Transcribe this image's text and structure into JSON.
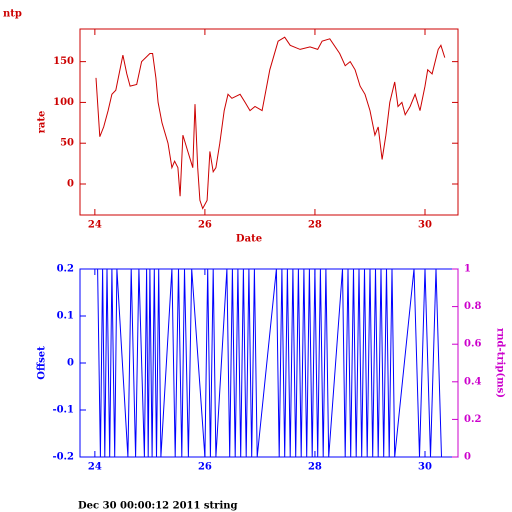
{
  "chart_data": [
    {
      "type": "line",
      "title": "ntp",
      "x_label": "Date",
      "y_label": "rate",
      "xlim": [
        23.73,
        30.6
      ],
      "xticks": [
        24,
        26,
        28,
        30
      ],
      "ylim": [
        -38,
        190
      ],
      "yticks": [
        0,
        50,
        100,
        150
      ],
      "color": "#cc0000",
      "series": [
        {
          "color": "#cc0000",
          "x": [
            24.02,
            24.09,
            24.16,
            24.24,
            24.31,
            24.38,
            24.51,
            24.58,
            24.64,
            24.76,
            24.85,
            25.0,
            25.05,
            25.11,
            25.15,
            25.22,
            25.33,
            25.4,
            25.45,
            25.51,
            25.55,
            25.6,
            25.69,
            25.78,
            25.82,
            25.87,
            25.91,
            25.96,
            26.04,
            26.09,
            26.15,
            26.2,
            26.27,
            26.35,
            26.42,
            26.49,
            26.64,
            26.73,
            26.82,
            26.91,
            27.04,
            27.18,
            27.33,
            27.45,
            27.55,
            27.73,
            27.91,
            28.05,
            28.13,
            28.27,
            28.45,
            28.55,
            28.64,
            28.73,
            28.82,
            28.91,
            29.0,
            29.09,
            29.15,
            29.22,
            29.29,
            29.36,
            29.45,
            29.51,
            29.58,
            29.64,
            29.73,
            29.82,
            29.91,
            30.0,
            30.05,
            30.13,
            30.24,
            30.29,
            30.36
          ],
          "values": [
            130,
            58,
            70,
            90,
            110,
            115,
            158,
            135,
            120,
            122,
            150,
            160,
            160,
            130,
            100,
            75,
            50,
            20,
            28,
            20,
            -15,
            60,
            40,
            20,
            98,
            20,
            -20,
            -30,
            -20,
            40,
            15,
            20,
            50,
            90,
            110,
            105,
            110,
            100,
            90,
            95,
            90,
            140,
            175,
            180,
            170,
            165,
            168,
            165,
            175,
            178,
            160,
            145,
            150,
            140,
            120,
            110,
            90,
            60,
            70,
            30,
            60,
            100,
            125,
            95,
            100,
            85,
            95,
            110,
            90,
            120,
            140,
            135,
            165,
            170,
            155
          ]
        }
      ]
    },
    {
      "type": "line",
      "y_label": "Offset",
      "y2_label": "rnd-trip(ms)",
      "xlim": [
        23.73,
        30.6
      ],
      "xticks": [
        24,
        26,
        28,
        30
      ],
      "ylim": [
        -0.2,
        0.2
      ],
      "yticks": [
        -0.2,
        -0.1,
        0,
        0.1,
        0.2
      ],
      "y2lim": [
        0,
        1
      ],
      "y2ticks": [
        0,
        0.2,
        0.4,
        0.6,
        0.8,
        1
      ],
      "color": "#0000ff",
      "y2color": "#cc00cc",
      "series": [
        {
          "color": "#0000ff",
          "x": [
            24.05,
            24.1,
            24.14,
            24.18,
            24.22,
            24.27,
            24.31,
            24.36,
            24.4,
            24.6,
            24.66,
            24.74,
            24.8,
            24.9,
            24.94,
            24.97,
            25.0,
            25.04,
            25.08,
            25.12,
            25.16,
            25.2,
            25.4,
            25.46,
            25.52,
            25.58,
            25.63,
            25.7,
            25.76,
            26.0,
            26.05,
            26.1,
            26.15,
            26.2,
            26.4,
            26.45,
            26.5,
            26.55,
            26.6,
            26.65,
            26.7,
            26.75,
            26.8,
            26.85,
            26.9,
            26.95,
            27.3,
            27.35,
            27.4,
            27.45,
            27.5,
            27.55,
            27.6,
            27.65,
            27.7,
            27.75,
            27.8,
            27.85,
            27.9,
            27.95,
            28.0,
            28.05,
            28.1,
            28.15,
            28.2,
            28.25,
            28.5,
            28.55,
            28.6,
            28.65,
            28.7,
            28.75,
            28.8,
            28.85,
            28.9,
            28.95,
            29.0,
            29.05,
            29.1,
            29.15,
            29.2,
            29.25,
            29.3,
            29.35,
            29.4,
            29.45,
            29.8,
            29.9,
            30.0,
            30.1,
            30.2,
            30.3
          ],
          "values": [
            0.2,
            -0.2,
            0.2,
            -0.2,
            0.2,
            -0.2,
            0.2,
            -0.2,
            0.2,
            -0.2,
            0.2,
            -0.2,
            0.2,
            -0.2,
            0.2,
            -0.2,
            0.2,
            -0.2,
            0.2,
            -0.2,
            0.2,
            -0.2,
            0.2,
            -0.2,
            0.2,
            -0.2,
            0.2,
            -0.2,
            0.2,
            -0.2,
            0.2,
            -0.2,
            0.2,
            -0.2,
            0.2,
            -0.2,
            0.2,
            -0.2,
            0.2,
            -0.2,
            0.2,
            -0.2,
            0.2,
            -0.2,
            0.2,
            -0.2,
            0.2,
            -0.2,
            0.2,
            -0.2,
            0.2,
            -0.2,
            0.2,
            -0.2,
            0.2,
            -0.2,
            0.2,
            -0.2,
            0.2,
            -0.2,
            0.2,
            -0.2,
            0.2,
            -0.2,
            0.2,
            -0.2,
            0.2,
            -0.2,
            0.2,
            -0.2,
            0.2,
            -0.2,
            0.2,
            -0.2,
            0.2,
            -0.2,
            0.2,
            -0.2,
            0.2,
            -0.2,
            0.2,
            -0.2,
            0.2,
            -0.2,
            0.2,
            -0.2,
            0.2,
            -0.2,
            0.2,
            -0.2,
            0.2,
            -0.2
          ]
        }
      ]
    }
  ],
  "footer": "Dec 30 00:00:12 2011 string"
}
